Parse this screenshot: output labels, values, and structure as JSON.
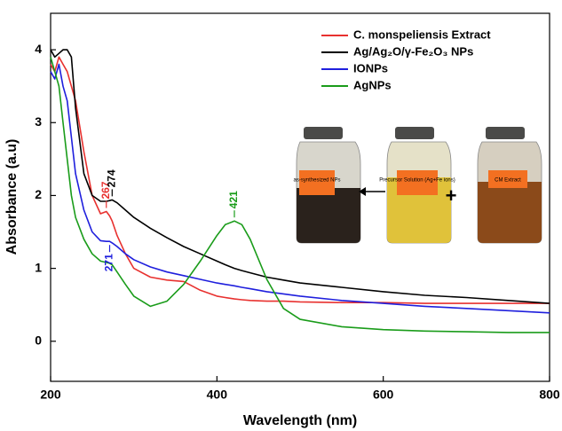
{
  "chart_data": {
    "type": "line",
    "x_label": "Wavelength (nm)",
    "y_label": "Absorbance (a.u)",
    "xlim": [
      200,
      800
    ],
    "ylim": [
      -0.55,
      4.5
    ],
    "xticks": [
      200,
      400,
      600,
      800
    ],
    "yticks": [
      0,
      1,
      2,
      3,
      4
    ],
    "x": [
      200,
      205,
      210,
      215,
      220,
      225,
      230,
      240,
      250,
      260,
      267,
      271,
      274,
      280,
      290,
      300,
      320,
      340,
      360,
      380,
      400,
      410,
      421,
      430,
      440,
      460,
      480,
      500,
      550,
      600,
      650,
      700,
      750,
      800
    ],
    "series": [
      {
        "name": "C. monspeliensis Extract",
        "color": "#e8312f",
        "values": [
          3.8,
          3.7,
          3.9,
          3.8,
          3.7,
          3.5,
          3.3,
          2.6,
          2.0,
          1.75,
          1.78,
          1.72,
          1.65,
          1.45,
          1.2,
          1.0,
          0.88,
          0.84,
          0.82,
          0.7,
          0.62,
          0.6,
          0.58,
          0.57,
          0.56,
          0.55,
          0.55,
          0.54,
          0.53,
          0.53,
          0.52,
          0.52,
          0.52,
          0.52
        ]
      },
      {
        "name": "Ag/Ag₂O/γ-Fe₂O₃ NPs",
        "color": "#000000",
        "values": [
          4.0,
          3.9,
          3.95,
          4.0,
          4.0,
          3.9,
          3.2,
          2.3,
          2.0,
          1.92,
          1.92,
          1.93,
          1.94,
          1.9,
          1.8,
          1.7,
          1.55,
          1.42,
          1.3,
          1.2,
          1.1,
          1.05,
          1.0,
          0.97,
          0.94,
          0.88,
          0.84,
          0.8,
          0.74,
          0.68,
          0.63,
          0.6,
          0.56,
          0.52
        ]
      },
      {
        "name": "IONPs",
        "color": "#1f1fdd",
        "values": [
          3.7,
          3.6,
          3.8,
          3.5,
          3.3,
          2.8,
          2.3,
          1.8,
          1.5,
          1.38,
          1.37,
          1.37,
          1.35,
          1.3,
          1.2,
          1.12,
          1.02,
          0.95,
          0.9,
          0.85,
          0.8,
          0.78,
          0.76,
          0.74,
          0.72,
          0.68,
          0.65,
          0.62,
          0.56,
          0.52,
          0.48,
          0.45,
          0.42,
          0.39
        ]
      },
      {
        "name": "AgNPs",
        "color": "#1a9c1a",
        "values": [
          3.9,
          3.7,
          3.5,
          3.0,
          2.5,
          2.0,
          1.7,
          1.4,
          1.2,
          1.1,
          1.08,
          1.07,
          1.05,
          0.95,
          0.78,
          0.62,
          0.48,
          0.55,
          0.78,
          1.1,
          1.45,
          1.6,
          1.65,
          1.6,
          1.4,
          0.85,
          0.45,
          0.3,
          0.2,
          0.16,
          0.14,
          0.13,
          0.12,
          0.12
        ]
      }
    ],
    "annotations": [
      {
        "x": 267,
        "y": 1.78,
        "label": "267",
        "color": "#e8312f"
      },
      {
        "x": 271,
        "y": 1.37,
        "label": "271",
        "color": "#1f1fdd"
      },
      {
        "x": 274,
        "y": 1.94,
        "label": "274",
        "color": "#000000"
      },
      {
        "x": 421,
        "y": 1.65,
        "label": "421",
        "color": "#1a9c1a"
      }
    ],
    "inset_labels": [
      "as-synthesized NPs",
      "Precursor Solution (Ag+Fe ions)",
      "CM Extract"
    ]
  }
}
